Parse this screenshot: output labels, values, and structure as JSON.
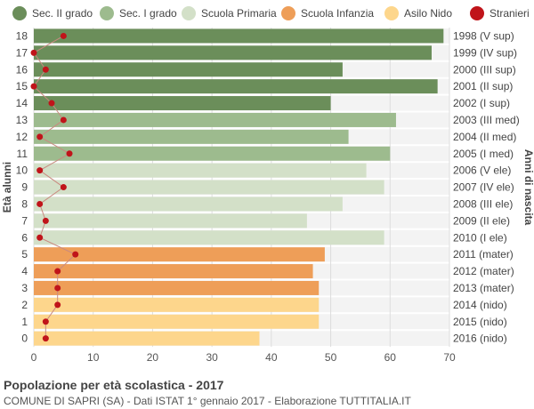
{
  "chart_data": {
    "type": "bar",
    "orientation": "horizontal",
    "ylabel_left": "Età alunni",
    "ylabel_right": "Anni di nascita",
    "xlim": [
      0,
      70
    ],
    "xticks": [
      0,
      10,
      20,
      30,
      40,
      50,
      60,
      70
    ],
    "grid": true,
    "ages": [
      "18",
      "17",
      "16",
      "15",
      "14",
      "13",
      "12",
      "11",
      "10",
      "9",
      "8",
      "7",
      "6",
      "5",
      "4",
      "3",
      "2",
      "1",
      "0"
    ],
    "birth_years": [
      "1998 (V sup)",
      "1999 (IV sup)",
      "2000 (III sup)",
      "2001 (II sup)",
      "2002 (I sup)",
      "2003 (III med)",
      "2004 (II med)",
      "2005 (I med)",
      "2006 (V ele)",
      "2007 (IV ele)",
      "2008 (III ele)",
      "2009 (II ele)",
      "2010 (I ele)",
      "2011 (mater)",
      "2012 (mater)",
      "2013 (mater)",
      "2014 (nido)",
      "2015 (nido)",
      "2016 (nido)"
    ],
    "values": [
      69,
      67,
      52,
      68,
      50,
      61,
      53,
      60,
      56,
      59,
      52,
      46,
      59,
      49,
      47,
      48,
      48,
      48,
      38
    ],
    "level_index": [
      0,
      0,
      0,
      0,
      0,
      1,
      1,
      1,
      2,
      2,
      2,
      2,
      2,
      3,
      3,
      3,
      4,
      4,
      4
    ],
    "stranieri": [
      5,
      0,
      2,
      0,
      3,
      5,
      1,
      6,
      1,
      5,
      1,
      2,
      1,
      7,
      4,
      4,
      4,
      2,
      2
    ],
    "legend": [
      {
        "name": "Sec. II grado",
        "color": "#6b8e5a"
      },
      {
        "name": "Sec. I grado",
        "color": "#9dbb8e"
      },
      {
        "name": "Scuola Primaria",
        "color": "#d3e0c8"
      },
      {
        "name": "Scuola Infanzia",
        "color": "#ee9e58"
      },
      {
        "name": "Asilo Nido",
        "color": "#fdd68c"
      },
      {
        "name": "Stranieri",
        "color": "#c0141a"
      }
    ],
    "line_color": "#c98a80"
  },
  "footer": {
    "title": "Popolazione per età scolastica - 2017",
    "subtitle": "COMUNE DI SAPRI (SA) - Dati ISTAT 1° gennaio 2017 - Elaborazione TUTTITALIA.IT"
  }
}
